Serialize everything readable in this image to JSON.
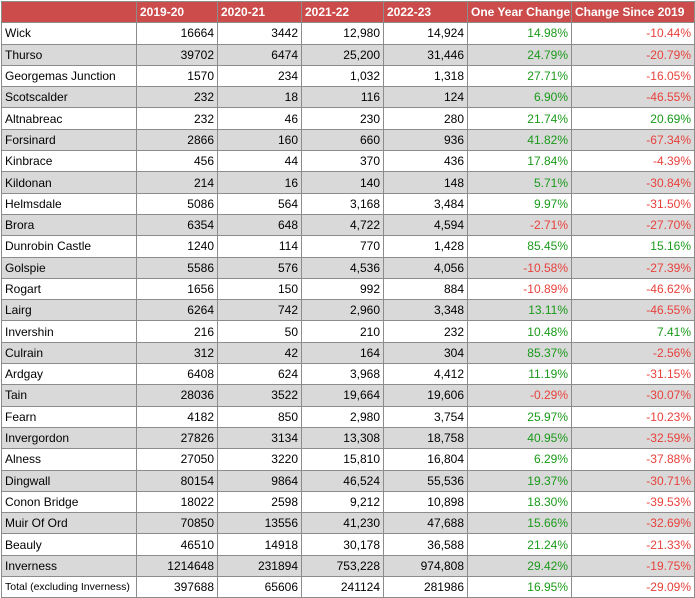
{
  "headers": [
    "",
    "2019-20",
    "2020-21",
    "2021-22",
    "2022-23",
    "One Year Change",
    "Change Since 2019"
  ],
  "rows": [
    {
      "station": "Wick",
      "y1920": "16664",
      "y2021": "3442",
      "y2122": "12,980",
      "y2223": "14,924",
      "one_year": "14.98%",
      "since_2019": "-10.44%"
    },
    {
      "station": "Thurso",
      "y1920": "39702",
      "y2021": "6474",
      "y2122": "25,200",
      "y2223": "31,446",
      "one_year": "24.79%",
      "since_2019": "-20.79%"
    },
    {
      "station": "Georgemas Junction",
      "y1920": "1570",
      "y2021": "234",
      "y2122": "1,032",
      "y2223": "1,318",
      "one_year": "27.71%",
      "since_2019": "-16.05%"
    },
    {
      "station": "Scotscalder",
      "y1920": "232",
      "y2021": "18",
      "y2122": "116",
      "y2223": "124",
      "one_year": "6.90%",
      "since_2019": "-46.55%"
    },
    {
      "station": "Altnabreac",
      "y1920": "232",
      "y2021": "46",
      "y2122": "230",
      "y2223": "280",
      "one_year": "21.74%",
      "since_2019": "20.69%"
    },
    {
      "station": "Forsinard",
      "y1920": "2866",
      "y2021": "160",
      "y2122": "660",
      "y2223": "936",
      "one_year": "41.82%",
      "since_2019": "-67.34%"
    },
    {
      "station": "Kinbrace",
      "y1920": "456",
      "y2021": "44",
      "y2122": "370",
      "y2223": "436",
      "one_year": "17.84%",
      "since_2019": "-4.39%"
    },
    {
      "station": "Kildonan",
      "y1920": "214",
      "y2021": "16",
      "y2122": "140",
      "y2223": "148",
      "one_year": "5.71%",
      "since_2019": "-30.84%"
    },
    {
      "station": "Helmsdale",
      "y1920": "5086",
      "y2021": "564",
      "y2122": "3,168",
      "y2223": "3,484",
      "one_year": "9.97%",
      "since_2019": "-31.50%"
    },
    {
      "station": "Brora",
      "y1920": "6354",
      "y2021": "648",
      "y2122": "4,722",
      "y2223": "4,594",
      "one_year": "-2.71%",
      "since_2019": "-27.70%"
    },
    {
      "station": "Dunrobin Castle",
      "y1920": "1240",
      "y2021": "114",
      "y2122": "770",
      "y2223": "1,428",
      "one_year": "85.45%",
      "since_2019": "15.16%"
    },
    {
      "station": "Golspie",
      "y1920": "5586",
      "y2021": "576",
      "y2122": "4,536",
      "y2223": "4,056",
      "one_year": "-10.58%",
      "since_2019": "-27.39%"
    },
    {
      "station": "Rogart",
      "y1920": "1656",
      "y2021": "150",
      "y2122": "992",
      "y2223": "884",
      "one_year": "-10.89%",
      "since_2019": "-46.62%"
    },
    {
      "station": "Lairg",
      "y1920": "6264",
      "y2021": "742",
      "y2122": "2,960",
      "y2223": "3,348",
      "one_year": "13.11%",
      "since_2019": "-46.55%"
    },
    {
      "station": "Invershin",
      "y1920": "216",
      "y2021": "50",
      "y2122": "210",
      "y2223": "232",
      "one_year": "10.48%",
      "since_2019": "7.41%"
    },
    {
      "station": "Culrain",
      "y1920": "312",
      "y2021": "42",
      "y2122": "164",
      "y2223": "304",
      "one_year": "85.37%",
      "since_2019": "-2.56%"
    },
    {
      "station": "Ardgay",
      "y1920": "6408",
      "y2021": "624",
      "y2122": "3,968",
      "y2223": "4,412",
      "one_year": "11.19%",
      "since_2019": "-31.15%"
    },
    {
      "station": "Tain",
      "y1920": "28036",
      "y2021": "3522",
      "y2122": "19,664",
      "y2223": "19,606",
      "one_year": "-0.29%",
      "since_2019": "-30.07%"
    },
    {
      "station": "Fearn",
      "y1920": "4182",
      "y2021": "850",
      "y2122": "2,980",
      "y2223": "3,754",
      "one_year": "25.97%",
      "since_2019": "-10.23%"
    },
    {
      "station": "Invergordon",
      "y1920": "27826",
      "y2021": "3134",
      "y2122": "13,308",
      "y2223": "18,758",
      "one_year": "40.95%",
      "since_2019": "-32.59%"
    },
    {
      "station": "Alness",
      "y1920": "27050",
      "y2021": "3220",
      "y2122": "15,810",
      "y2223": "16,804",
      "one_year": "6.29%",
      "since_2019": "-37.88%"
    },
    {
      "station": "Dingwall",
      "y1920": "80154",
      "y2021": "9864",
      "y2122": "46,524",
      "y2223": "55,536",
      "one_year": "19.37%",
      "since_2019": "-30.71%"
    },
    {
      "station": "Conon Bridge",
      "y1920": "18022",
      "y2021": "2598",
      "y2122": "9,212",
      "y2223": "10,898",
      "one_year": "18.30%",
      "since_2019": "-39.53%"
    },
    {
      "station": "Muir Of Ord",
      "y1920": "70850",
      "y2021": "13556",
      "y2122": "41,230",
      "y2223": "47,688",
      "one_year": "15.66%",
      "since_2019": "-32.69%"
    },
    {
      "station": "Beauly",
      "y1920": "46510",
      "y2021": "14918",
      "y2122": "30,178",
      "y2223": "36,588",
      "one_year": "21.24%",
      "since_2019": "-21.33%"
    },
    {
      "station": "Inverness",
      "y1920": "1214648",
      "y2021": "231894",
      "y2122": "753,228",
      "y2223": "974,808",
      "one_year": "29.42%",
      "since_2019": "-19.75%"
    },
    {
      "station": "Total (excluding Inverness)",
      "y1920": "397688",
      "y2021": "65606",
      "y2122": "241124",
      "y2223": "281986",
      "one_year": "16.95%",
      "since_2019": "-29.09%"
    }
  ],
  "colors": {
    "header_bg": "#cc4b4b",
    "positive": "#1a9a1a",
    "negative": "#e8413c",
    "stripe": "#d9d9d9"
  }
}
